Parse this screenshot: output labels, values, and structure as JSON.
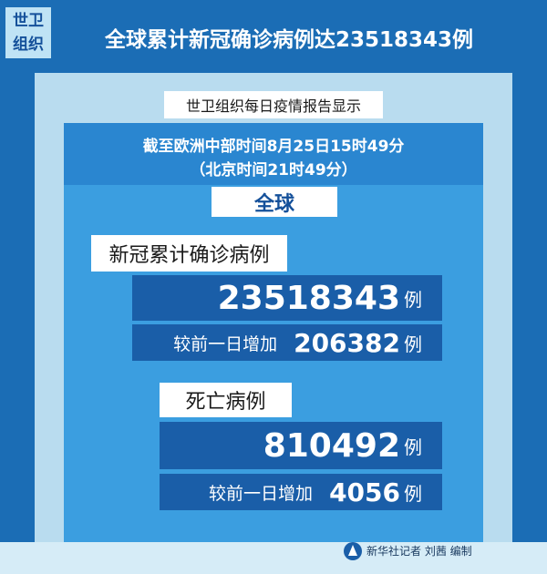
{
  "header": {
    "badge": [
      "世卫",
      "组织"
    ],
    "title": "全球累计新冠确诊病例达23518343例"
  },
  "subtitle": "世卫组织每日疫情报告显示",
  "timestamp": {
    "line1": "截至欧洲中部时间8月25日15时49分",
    "line2": "（北京时间21时49分）"
  },
  "region": "全球",
  "sections": [
    {
      "label": "新冠累计确诊病例",
      "total": "23518343",
      "total_unit": "例",
      "increase_label": "较前一日增加",
      "increase": "206382",
      "increase_unit": "例"
    },
    {
      "label": "死亡病例",
      "total": "810492",
      "total_unit": "例",
      "increase_label": "较前一日增加",
      "increase": "4056",
      "increase_unit": "例"
    }
  ],
  "credit": "新华社记者 刘茜 编制"
}
